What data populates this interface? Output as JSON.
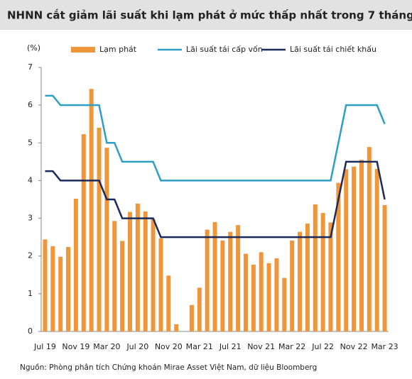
{
  "chart_data": {
    "type": "combo",
    "title": "NHNN cắt giảm lãi suất khi lạm phát ở mức thấp nhất trong 7 tháng",
    "y_label": "(%)",
    "source": "Nguồn: Phòng phân tích Chứng khoán Mirae Asset Việt Nam, dữ liệu Bloomberg",
    "categories": [
      "Jul 19",
      null,
      null,
      null,
      "Nov 19",
      null,
      null,
      null,
      "Mar 20",
      null,
      null,
      null,
      "Jul 20",
      null,
      null,
      null,
      "Nov 20",
      null,
      null,
      null,
      "Mar 21",
      null,
      null,
      null,
      "Jul 21",
      null,
      null,
      null,
      "Nov 21",
      null,
      null,
      null,
      "Mar 22",
      null,
      null,
      null,
      "Jul 22",
      null,
      null,
      null,
      "Nov 22",
      null,
      null,
      null,
      "Mar 23"
    ],
    "series": [
      {
        "name": "Lạm phát",
        "type": "bar",
        "color": "#f0963a",
        "values": [
          2.44,
          2.26,
          1.98,
          2.24,
          3.52,
          5.23,
          6.43,
          5.4,
          4.87,
          2.93,
          2.4,
          3.17,
          3.39,
          3.18,
          2.98,
          2.47,
          1.48,
          0.19,
          0,
          0.7,
          1.16,
          2.7,
          2.9,
          2.41,
          2.64,
          2.82,
          2.06,
          1.77,
          2.1,
          1.81,
          1.94,
          1.42,
          2.41,
          2.64,
          2.86,
          3.37,
          3.14,
          2.89,
          3.94,
          4.3,
          4.37,
          4.55,
          4.89,
          4.31,
          3.35
        ]
      },
      {
        "name": "Lãi suất tái cấp vốn",
        "type": "line",
        "color": "#2e9ec4",
        "values": [
          6.25,
          6.25,
          6,
          6,
          6,
          6,
          6,
          6,
          5,
          5,
          4.5,
          4.5,
          4.5,
          4.5,
          4.5,
          4,
          4,
          4,
          4,
          4,
          4,
          4,
          4,
          4,
          4,
          4,
          4,
          4,
          4,
          4,
          4,
          4,
          4,
          4,
          4,
          4,
          4,
          4,
          5,
          6,
          6,
          6,
          6,
          6,
          5.5
        ]
      },
      {
        "name": "Lãi suất tái chiết khấu",
        "type": "line",
        "color": "#1b2a5a",
        "values": [
          4.25,
          4.25,
          4,
          4,
          4,
          4,
          4,
          4,
          3.5,
          3.5,
          3,
          3,
          3,
          3,
          3,
          2.5,
          2.5,
          2.5,
          2.5,
          2.5,
          2.5,
          2.5,
          2.5,
          2.5,
          2.5,
          2.5,
          2.5,
          2.5,
          2.5,
          2.5,
          2.5,
          2.5,
          2.5,
          2.5,
          2.5,
          2.5,
          2.5,
          2.5,
          3.5,
          4.5,
          4.5,
          4.5,
          4.5,
          4.5,
          3.5
        ]
      }
    ],
    "ylim": [
      0,
      7
    ],
    "yticks": [
      0,
      1,
      2,
      3,
      4,
      5,
      6,
      7
    ],
    "grid": false
  }
}
